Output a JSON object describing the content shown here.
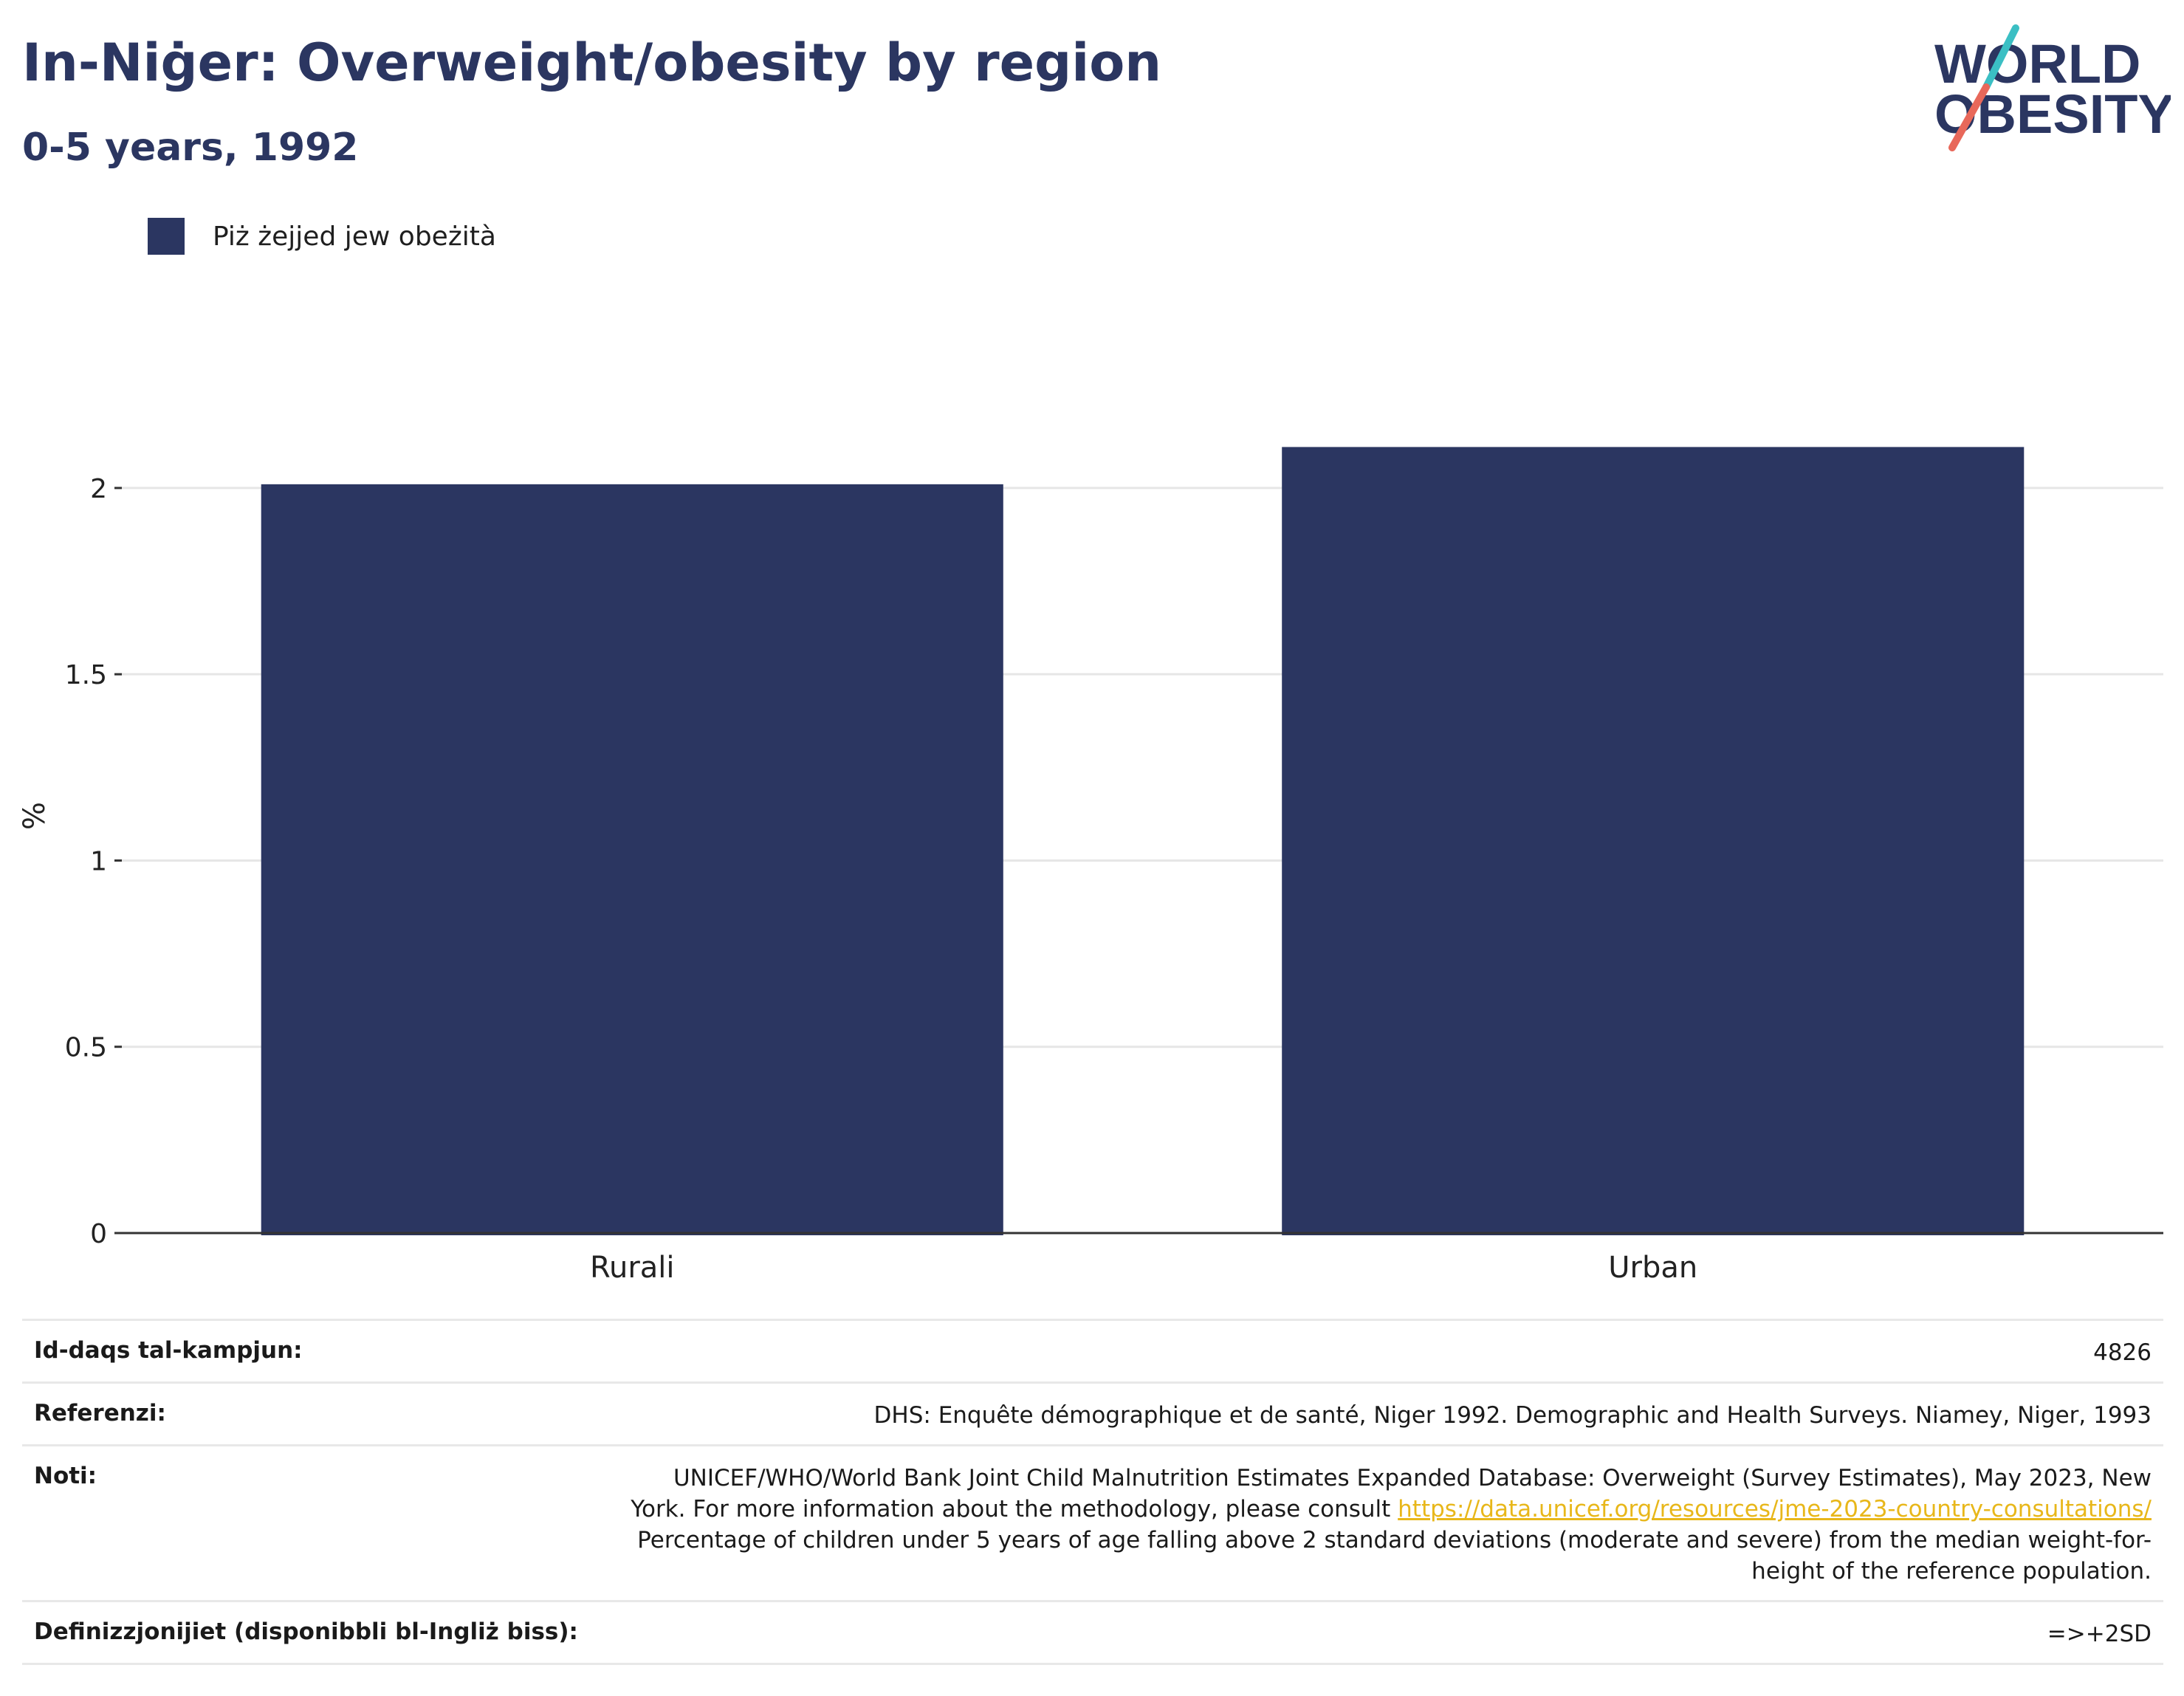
{
  "header": {
    "title": "In-Niġer: Overweight/obesity by region",
    "subtitle": "0-5 years, 1992"
  },
  "logo": {
    "line1": "WORLD",
    "line2": "OBESITY",
    "colors": {
      "text": "#2b3661",
      "slash_top": "#3bbfc4",
      "slash_bottom": "#e8685a"
    }
  },
  "chart_data": {
    "type": "bar",
    "categories": [
      "Rurali",
      "Urban"
    ],
    "series": [
      {
        "name": "Piż żejjed jew obeżità",
        "values": [
          2.01,
          2.11
        ],
        "color": "#2b3661"
      }
    ],
    "ylabel": "%",
    "xlabel": "",
    "ylim": [
      0,
      2.2
    ],
    "yticks": [
      0,
      0.5,
      1,
      1.5,
      2
    ],
    "ytick_labels": [
      "0",
      "0.5",
      "1",
      "1.5",
      "2"
    ],
    "grid": true,
    "legend_position": "top-left"
  },
  "meta": {
    "rows": [
      {
        "label": "Id-daqs tal-kampjun:",
        "value": "4826"
      },
      {
        "label": "Referenzi:",
        "value": "DHS: Enquête démographique et de santé, Niger 1992. Demographic and Health Surveys. Niamey, Niger, 1993"
      },
      {
        "label": "Noti:",
        "value_pre": "UNICEF/WHO/World Bank Joint Child Malnutrition Estimates Expanded Database: Overweight (Survey Estimates), May 2023, New York. For more information about the methodology, please consult ",
        "link": "https://data.unicef.org/resources/jme-2023-country-consultations/",
        "value_post": " Percentage of children under 5 years of age falling above 2 standard deviations (moderate and severe) from the median weight-for-height of the reference population."
      },
      {
        "label": "Definizzjonijiet (disponibbli bl-Ingliż biss):",
        "value": "=>+2SD"
      }
    ]
  }
}
